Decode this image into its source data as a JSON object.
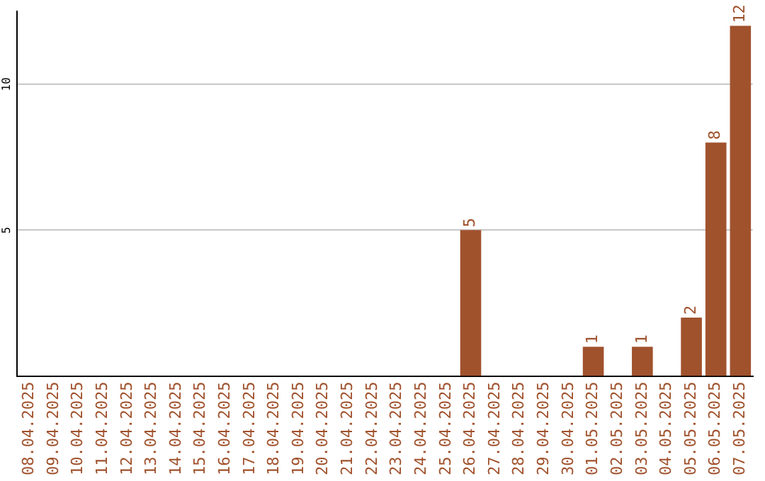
{
  "chart_data": {
    "type": "bar",
    "categories": [
      "08.04.2025",
      "09.04.2025",
      "10.04.2025",
      "11.04.2025",
      "12.04.2025",
      "13.04.2025",
      "14.04.2025",
      "15.04.2025",
      "16.04.2025",
      "17.04.2025",
      "18.04.2025",
      "19.04.2025",
      "20.04.2025",
      "21.04.2025",
      "22.04.2025",
      "23.04.2025",
      "24.04.2025",
      "25.04.2025",
      "26.04.2025",
      "27.04.2025",
      "28.04.2025",
      "29.04.2025",
      "30.04.2025",
      "01.05.2025",
      "02.05.2025",
      "03.05.2025",
      "04.05.2025",
      "05.05.2025",
      "06.05.2025",
      "07.05.2025"
    ],
    "values": [
      0,
      0,
      0,
      0,
      0,
      0,
      0,
      0,
      0,
      0,
      0,
      0,
      0,
      0,
      0,
      0,
      0,
      0,
      5,
      0,
      0,
      0,
      0,
      1,
      0,
      1,
      0,
      2,
      8,
      12
    ],
    "value_labels": [
      null,
      null,
      null,
      null,
      null,
      null,
      null,
      null,
      null,
      null,
      null,
      null,
      null,
      null,
      null,
      null,
      null,
      null,
      "5",
      null,
      null,
      null,
      null,
      "1",
      null,
      "1",
      null,
      "2",
      "8",
      "12"
    ],
    "color": "#a0522d",
    "ylim": [
      0,
      12.5
    ],
    "yticks": [
      5,
      10
    ],
    "grid": "y"
  }
}
